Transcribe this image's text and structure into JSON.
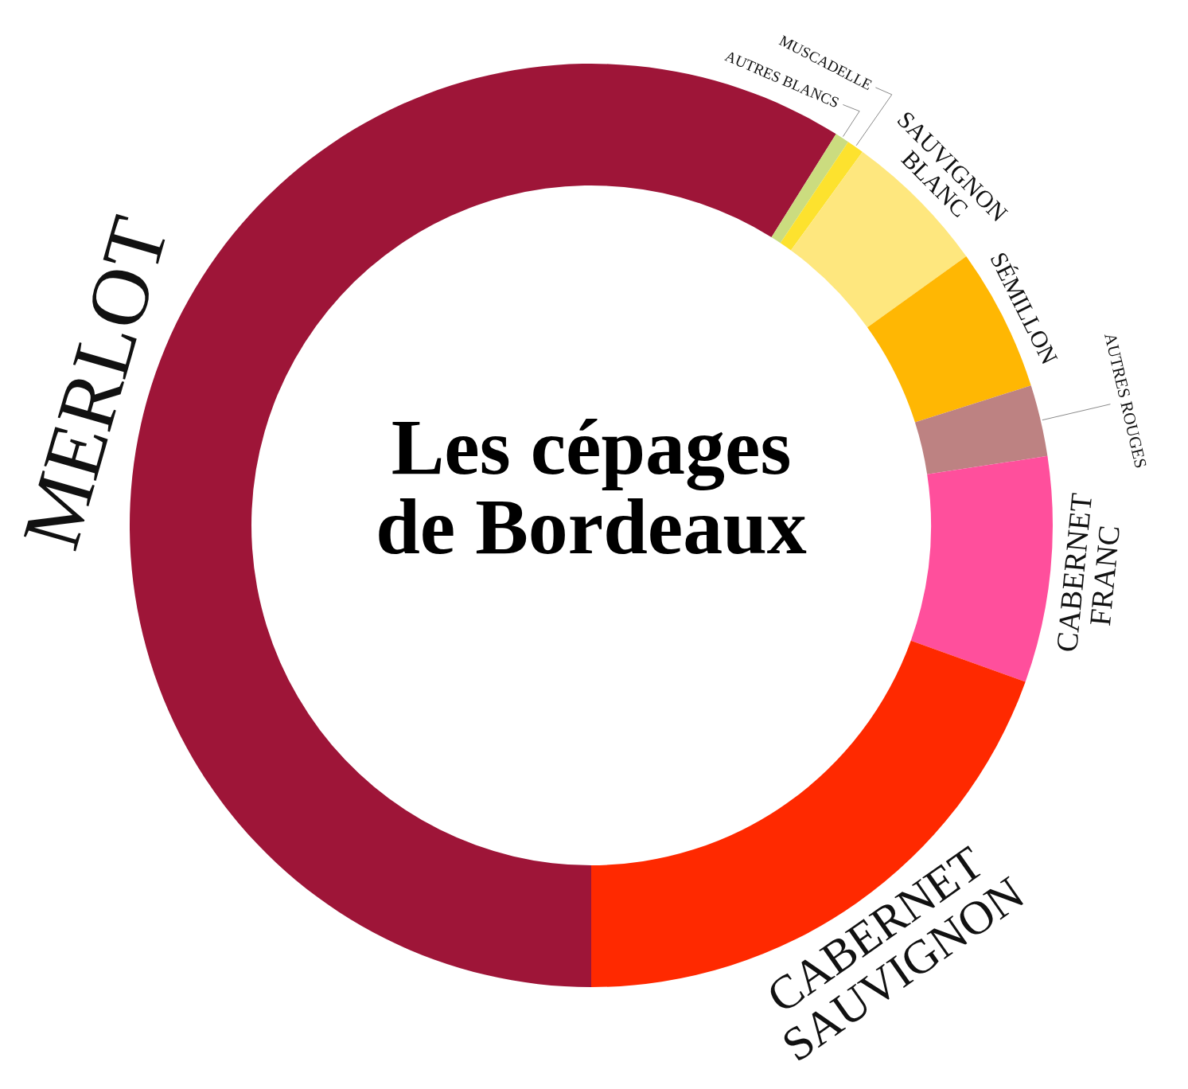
{
  "chart_data": {
    "type": "donut",
    "title": "Les cépages de Bordeaux",
    "categories": [
      "MERLOT",
      "AUTRES BLANCS",
      "MUSCADELLE",
      "SAUVIGNON BLANC",
      "SÉMILLON",
      "AUTRES ROUGES",
      "CABERNET FRANC",
      "CABERNET SAUVIGNON"
    ],
    "values": [
      58.9,
      0.5,
      0.6,
      5.1,
      5.0,
      2.5,
      7.9,
      19.5
    ],
    "colors": [
      "#9e1538",
      "#cbdc7f",
      "#fde22e",
      "#fee77e",
      "#ffb703",
      "#bd8282",
      "#ff4f9c",
      "#ff2900"
    ]
  }
}
